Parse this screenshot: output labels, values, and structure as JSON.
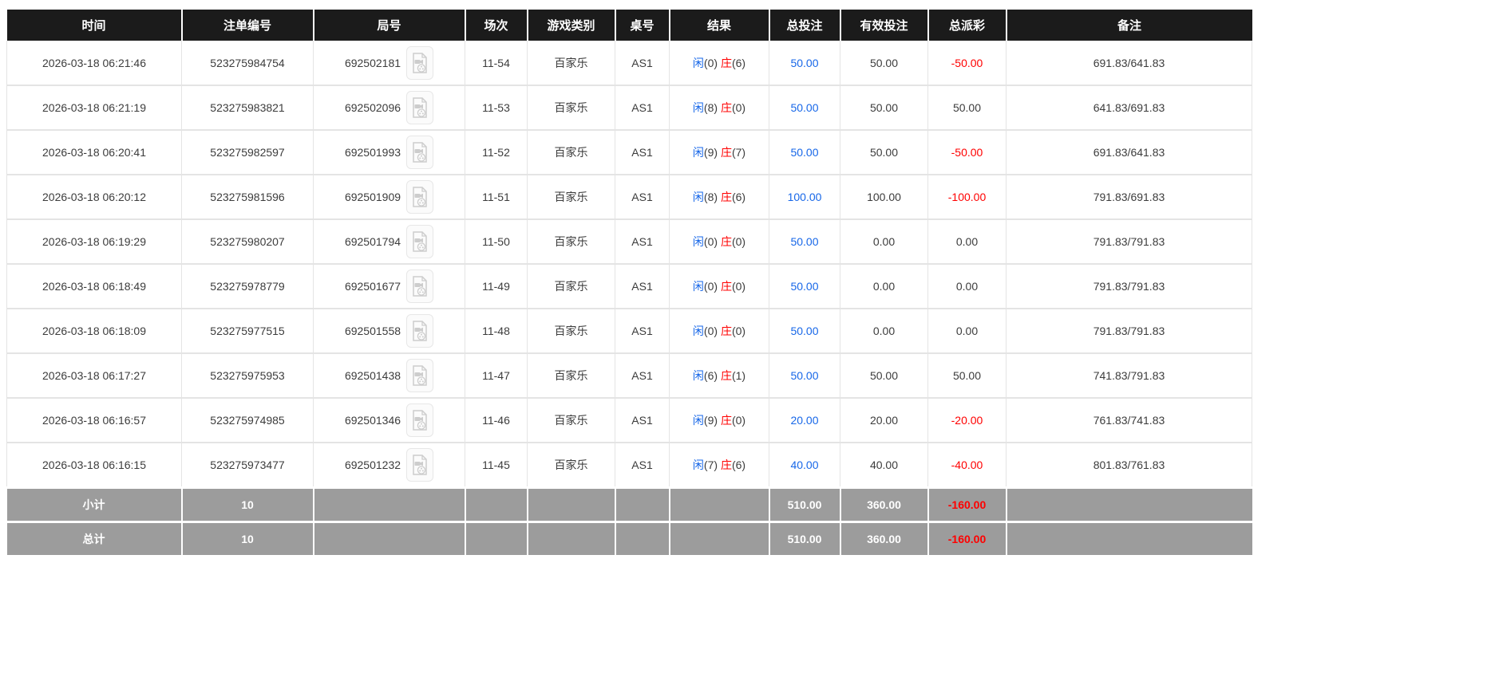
{
  "colors": {
    "blue": "#1767e8",
    "red": "#ff0000",
    "header_bg": "#1b1b1b",
    "summary_bg": "#9c9c9c"
  },
  "table": {
    "columns": [
      {
        "key": "time",
        "label": "时间"
      },
      {
        "key": "bet_id",
        "label": "注单编号"
      },
      {
        "key": "round",
        "label": "局号"
      },
      {
        "key": "session",
        "label": "场次"
      },
      {
        "key": "game",
        "label": "游戏类别"
      },
      {
        "key": "table_no",
        "label": "桌号"
      },
      {
        "key": "result",
        "label": "结果"
      },
      {
        "key": "total_bet",
        "label": "总投注"
      },
      {
        "key": "valid_bet",
        "label": "有效投注"
      },
      {
        "key": "payout",
        "label": "总派彩"
      },
      {
        "key": "remark",
        "label": "备注"
      }
    ],
    "result_labels": {
      "player": "闲",
      "banker": "庄"
    },
    "icons": {
      "video": "video-file-icon"
    },
    "rows": [
      {
        "time": "2026-03-18 06:21:46",
        "bet_id": "523275984754",
        "round": "692502181",
        "session": "11-54",
        "game": "百家乐",
        "table_no": "AS1",
        "player": "0",
        "banker": "6",
        "total_bet": "50.00",
        "valid_bet": "50.00",
        "payout": "-50.00",
        "remark": "691.83/641.83"
      },
      {
        "time": "2026-03-18 06:21:19",
        "bet_id": "523275983821",
        "round": "692502096",
        "session": "11-53",
        "game": "百家乐",
        "table_no": "AS1",
        "player": "8",
        "banker": "0",
        "total_bet": "50.00",
        "valid_bet": "50.00",
        "payout": "50.00",
        "remark": "641.83/691.83"
      },
      {
        "time": "2026-03-18 06:20:41",
        "bet_id": "523275982597",
        "round": "692501993",
        "session": "11-52",
        "game": "百家乐",
        "table_no": "AS1",
        "player": "9",
        "banker": "7",
        "total_bet": "50.00",
        "valid_bet": "50.00",
        "payout": "-50.00",
        "remark": "691.83/641.83"
      },
      {
        "time": "2026-03-18 06:20:12",
        "bet_id": "523275981596",
        "round": "692501909",
        "session": "11-51",
        "game": "百家乐",
        "table_no": "AS1",
        "player": "8",
        "banker": "6",
        "total_bet": "100.00",
        "valid_bet": "100.00",
        "payout": "-100.00",
        "remark": "791.83/691.83"
      },
      {
        "time": "2026-03-18 06:19:29",
        "bet_id": "523275980207",
        "round": "692501794",
        "session": "11-50",
        "game": "百家乐",
        "table_no": "AS1",
        "player": "0",
        "banker": "0",
        "total_bet": "50.00",
        "valid_bet": "0.00",
        "payout": "0.00",
        "remark": "791.83/791.83"
      },
      {
        "time": "2026-03-18 06:18:49",
        "bet_id": "523275978779",
        "round": "692501677",
        "session": "11-49",
        "game": "百家乐",
        "table_no": "AS1",
        "player": "0",
        "banker": "0",
        "total_bet": "50.00",
        "valid_bet": "0.00",
        "payout": "0.00",
        "remark": "791.83/791.83"
      },
      {
        "time": "2026-03-18 06:18:09",
        "bet_id": "523275977515",
        "round": "692501558",
        "session": "11-48",
        "game": "百家乐",
        "table_no": "AS1",
        "player": "0",
        "banker": "0",
        "total_bet": "50.00",
        "valid_bet": "0.00",
        "payout": "0.00",
        "remark": "791.83/791.83"
      },
      {
        "time": "2026-03-18 06:17:27",
        "bet_id": "523275975953",
        "round": "692501438",
        "session": "11-47",
        "game": "百家乐",
        "table_no": "AS1",
        "player": "6",
        "banker": "1",
        "total_bet": "50.00",
        "valid_bet": "50.00",
        "payout": "50.00",
        "remark": "741.83/791.83"
      },
      {
        "time": "2026-03-18 06:16:57",
        "bet_id": "523275974985",
        "round": "692501346",
        "session": "11-46",
        "game": "百家乐",
        "table_no": "AS1",
        "player": "9",
        "banker": "0",
        "total_bet": "20.00",
        "valid_bet": "20.00",
        "payout": "-20.00",
        "remark": "761.83/741.83"
      },
      {
        "time": "2026-03-18 06:16:15",
        "bet_id": "523275973477",
        "round": "692501232",
        "session": "11-45",
        "game": "百家乐",
        "table_no": "AS1",
        "player": "7",
        "banker": "6",
        "total_bet": "40.00",
        "valid_bet": "40.00",
        "payout": "-40.00",
        "remark": "801.83/761.83"
      }
    ],
    "summary": [
      {
        "key": "subtotal",
        "label": "小计",
        "count": "10",
        "total_bet": "510.00",
        "valid_bet": "360.00",
        "payout": "-160.00"
      },
      {
        "key": "total",
        "label": "总计",
        "count": "10",
        "total_bet": "510.00",
        "valid_bet": "360.00",
        "payout": "-160.00"
      }
    ]
  }
}
